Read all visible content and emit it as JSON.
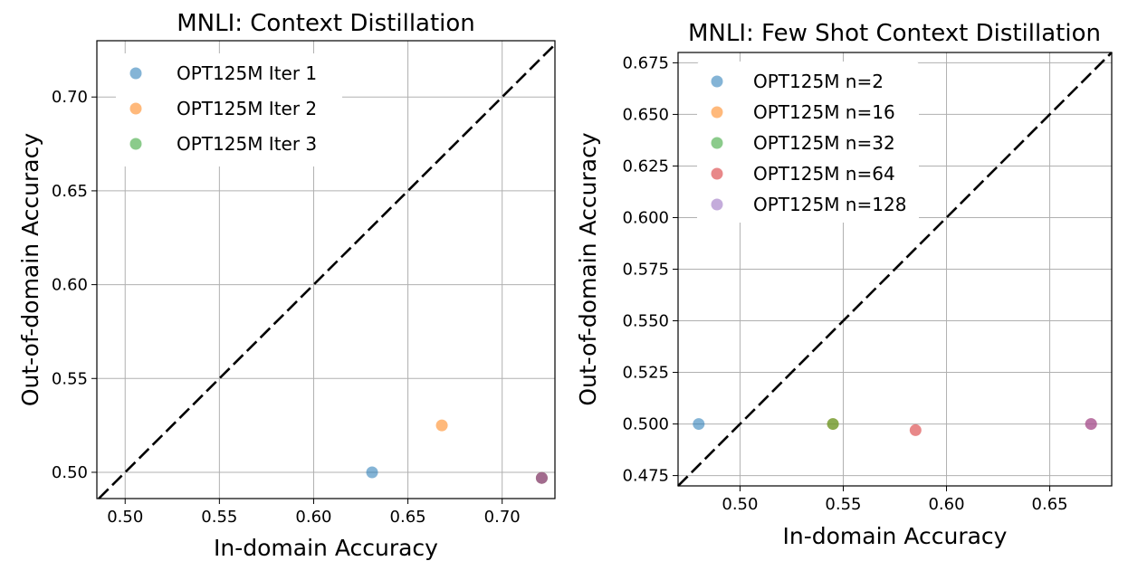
{
  "chart_data": [
    {
      "type": "scatter",
      "title": "MNLI: Context Distillation",
      "xlabel": "In-domain Accuracy",
      "ylabel": "Out-of-domain Accuracy",
      "xlim": [
        0.485,
        0.728
      ],
      "ylim": [
        0.486,
        0.73
      ],
      "xticks": [
        "0.50",
        "0.55",
        "0.60",
        "0.65",
        "0.70"
      ],
      "yticks": [
        "0.50",
        "0.55",
        "0.60",
        "0.65",
        "0.70"
      ],
      "grid": true,
      "legend_position": "upper-left",
      "diagonal_line": "y = x",
      "series": [
        {
          "name": "OPT125M Iter 1",
          "color": "#1f77b4",
          "points": [
            [
              0.631,
              0.5
            ]
          ]
        },
        {
          "name": "OPT125M Iter 2",
          "color": "#ff7f0e",
          "points": [
            [
              0.668,
              0.525
            ]
          ]
        },
        {
          "name": "OPT125M Iter 3",
          "color": "#2ca02c",
          "points": [
            [
              0.721,
              0.497
            ]
          ]
        },
        {
          "name": "",
          "color": "#d62728",
          "points": [
            [
              0.721,
              0.497
            ]
          ]
        },
        {
          "name": "",
          "color": "#9467bd",
          "points": [
            [
              0.721,
              0.497
            ]
          ]
        }
      ]
    },
    {
      "type": "scatter",
      "title": "MNLI: Few Shot Context Distillation",
      "xlabel": "In-domain Accuracy",
      "ylabel": "Out-of-domain Accuracy",
      "xlim": [
        0.47,
        0.68
      ],
      "ylim": [
        0.47,
        0.68
      ],
      "xticks": [
        "0.50",
        "0.55",
        "0.60",
        "0.65"
      ],
      "yticks": [
        "0.475",
        "0.500",
        "0.525",
        "0.550",
        "0.575",
        "0.600",
        "0.625",
        "0.650",
        "0.675"
      ],
      "grid": true,
      "legend_position": "upper-left",
      "diagonal_line": "y = x",
      "series": [
        {
          "name": "OPT125M n=2",
          "color": "#1f77b4",
          "points": [
            [
              0.48,
              0.5
            ]
          ]
        },
        {
          "name": "OPT125M n=16",
          "color": "#ff7f0e",
          "points": [
            [
              0.545,
              0.5
            ]
          ]
        },
        {
          "name": "OPT125M n=32",
          "color": "#2ca02c",
          "points": [
            [
              0.545,
              0.5
            ]
          ]
        },
        {
          "name": "OPT125M n=64",
          "color": "#d62728",
          "points": [
            [
              0.585,
              0.497
            ],
            [
              0.67,
              0.5
            ]
          ]
        },
        {
          "name": "OPT125M n=128",
          "color": "#9467bd",
          "points": [
            [
              0.67,
              0.5
            ]
          ]
        }
      ]
    }
  ]
}
